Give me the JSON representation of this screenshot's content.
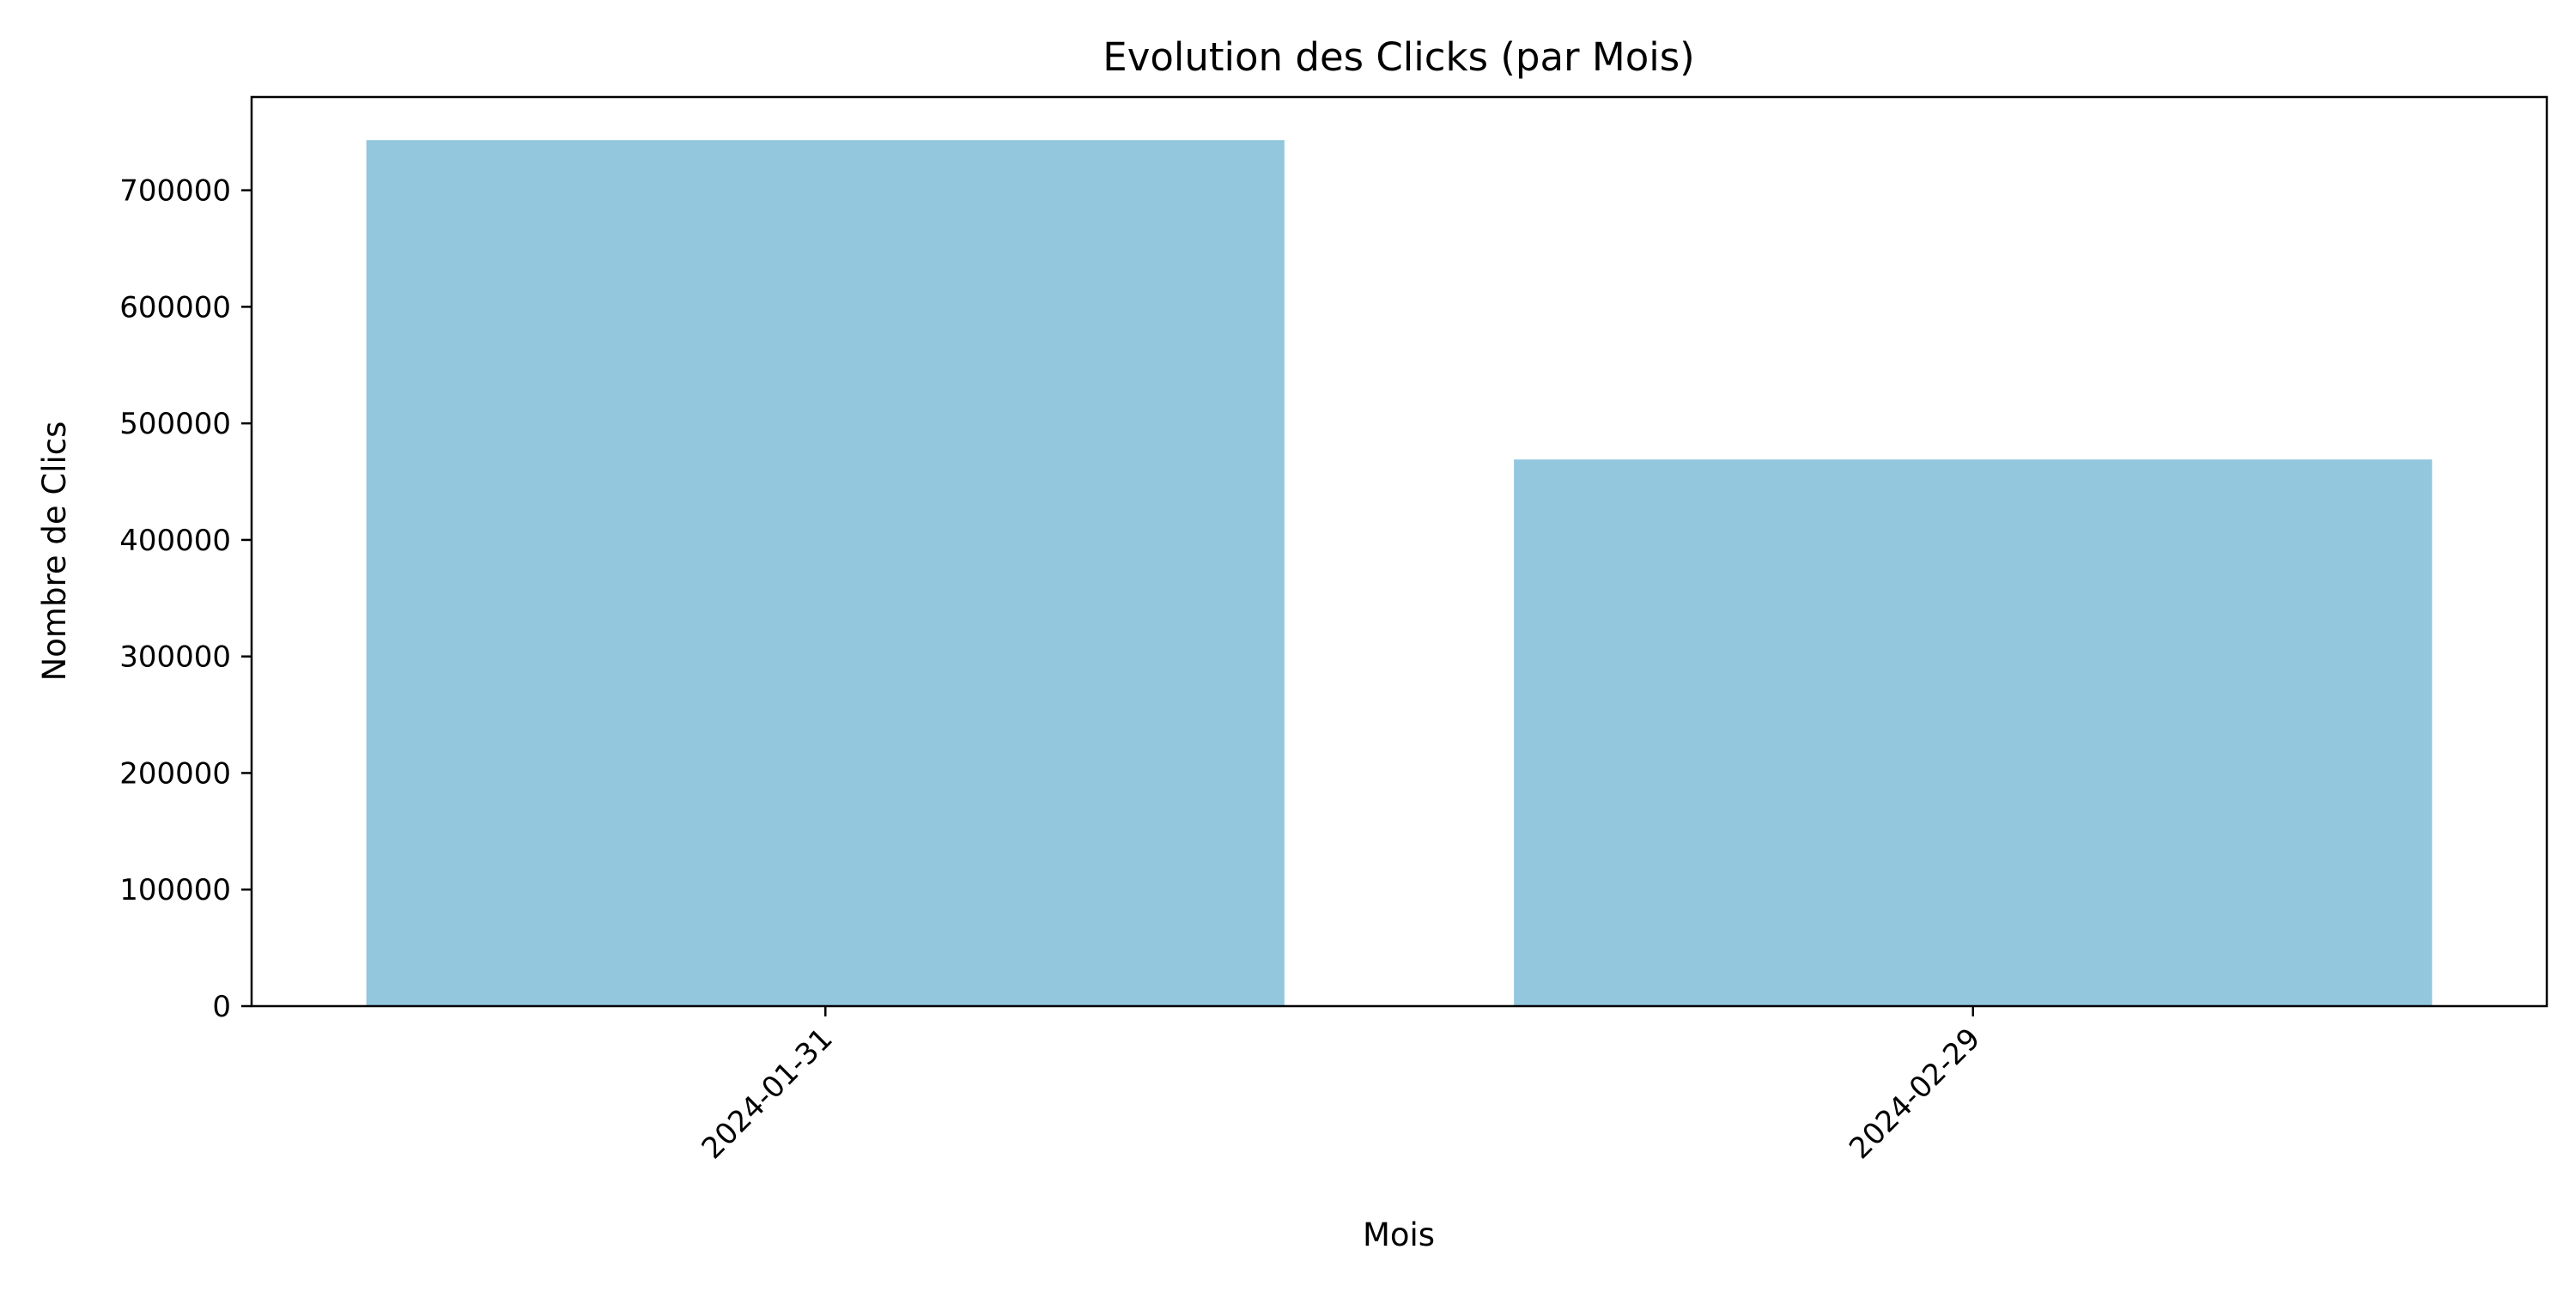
{
  "chart_data": {
    "type": "bar",
    "title": "Evolution des Clicks (par Mois)",
    "xlabel": "Mois",
    "ylabel": "Nombre de Clics",
    "categories": [
      "2024-01-31",
      "2024-02-29"
    ],
    "values": [
      743000,
      469000
    ],
    "ylim": [
      0,
      780000
    ],
    "yticks": [
      0,
      100000,
      200000,
      300000,
      400000,
      500000,
      600000,
      700000
    ],
    "ytick_labels": [
      "0",
      "100000",
      "200000",
      "300000",
      "400000",
      "500000",
      "600000",
      "700000"
    ],
    "bar_color": "#92c7de",
    "grid": false,
    "legend": "none",
    "xtick_rotation_deg": 45
  }
}
